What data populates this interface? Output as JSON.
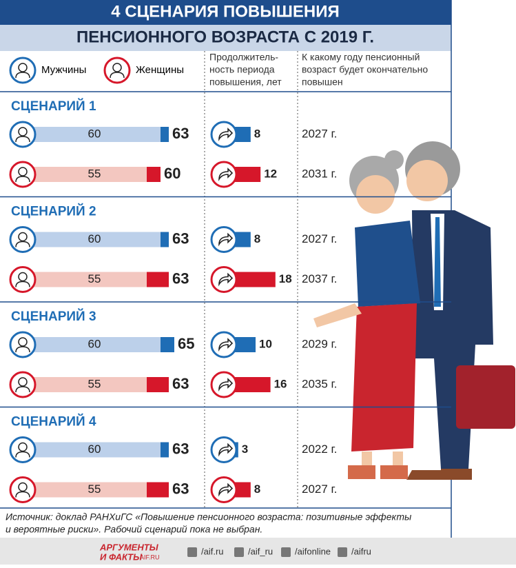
{
  "header": {
    "title_line1": "4 СЦЕНАРИЯ ПОВЫШЕНИЯ",
    "title_line2": "ПЕНСИОННОГО ВОЗРАСТА С 2019 Г."
  },
  "legend": {
    "men": "Мужчины",
    "women": "Женщины",
    "men_color": "#1f6db5",
    "men_light": "#bcd0ea",
    "women_color": "#d6172a",
    "women_light": "#f3c7c0"
  },
  "columns": {
    "duration": [
      "Продолжитель-",
      "ность периода",
      "повышения, лет"
    ],
    "final_year": [
      "К какому году пенсионный",
      "возраст будет окончательно",
      "повышен"
    ]
  },
  "scenarios": [
    {
      "title": "СЦЕНАРИЙ 1",
      "men": {
        "current_age": 60,
        "new_age": 63,
        "duration": 8,
        "final_year": "2027 г."
      },
      "women": {
        "current_age": 55,
        "new_age": 60,
        "duration": 12,
        "final_year": "2031 г."
      }
    },
    {
      "title": "СЦЕНАРИЙ 2",
      "men": {
        "current_age": 60,
        "new_age": 63,
        "duration": 8,
        "final_year": "2027 г."
      },
      "women": {
        "current_age": 55,
        "new_age": 63,
        "duration": 18,
        "final_year": "2037 г."
      }
    },
    {
      "title": "СЦЕНАРИЙ 3",
      "men": {
        "current_age": 60,
        "new_age": 65,
        "duration": 10,
        "final_year": "2029 г."
      },
      "women": {
        "current_age": 55,
        "new_age": 63,
        "duration": 16,
        "final_year": "2035 г."
      }
    },
    {
      "title": "СЦЕНАРИЙ 4",
      "men": {
        "current_age": 60,
        "new_age": 63,
        "duration": 3,
        "final_year": "2022 г."
      },
      "women": {
        "current_age": 55,
        "new_age": 63,
        "duration": 8,
        "final_year": "2027 г."
      }
    }
  ],
  "source": [
    "Источник: доклад РАНХиГС «Повышение пенсионного возраста: позитивные эффекты",
    "и вероятные риски». Рабочий сценарий пока не выбран."
  ],
  "footer": {
    "brand_line1": "АРГУМЕНТЫ",
    "brand_line2": "И ФАКТЫ",
    "brand_site": "AIF.RU",
    "links": [
      "/aif.ru",
      "/aif_ru",
      "/aifonline",
      "/aifru"
    ]
  }
}
